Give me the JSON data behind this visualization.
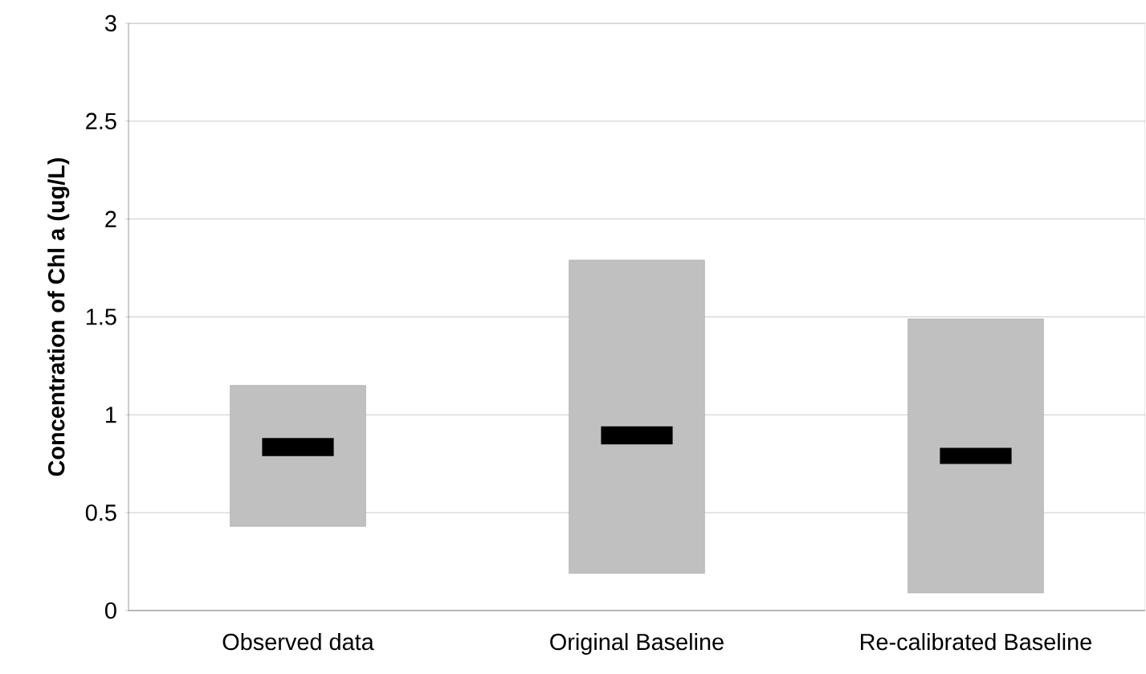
{
  "chart_data": {
    "type": "bar",
    "ylabel": "Concentration of Chl a (ug/L)",
    "categories": [
      "Observed data",
      "Original Baseline",
      "Re-calibrated Baseline"
    ],
    "series": [
      {
        "color": "#c0c0c0",
        "base": [
          0.43,
          0.19,
          0.09
        ],
        "values": [
          0.72,
          1.6,
          1.4
        ]
      },
      {
        "color": "#000000",
        "base": [
          0.79,
          0.85,
          0.75
        ],
        "values": [
          0.09,
          0.09,
          0.08
        ]
      }
    ],
    "ylim": [
      0,
      3
    ],
    "yticks": [
      0,
      0.5,
      1,
      1.5,
      2,
      2.5,
      3
    ],
    "grid": "y"
  }
}
